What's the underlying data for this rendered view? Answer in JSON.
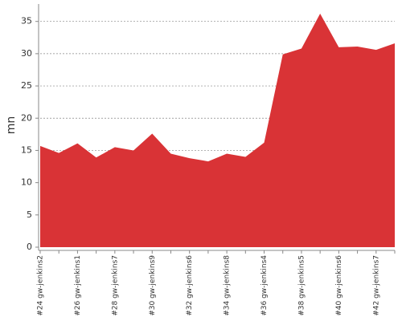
{
  "chart_data": {
    "type": "area",
    "y_label": "mn",
    "categories": [
      "#24 gw-jenkins2",
      null,
      "#26 gw-jenkins1",
      null,
      "#28 gw-jenkins7",
      null,
      "#30 gw-jenkins9",
      null,
      "#32 gw-jenkins6",
      null,
      "#34 gw-jenkins8",
      null,
      "#36 gw-jenkins4",
      null,
      "#38 gw-jenkins5",
      null,
      "#40 gw-jenkins6",
      null,
      "#42 gw-jenkins7",
      null
    ],
    "values": [
      15.7,
      14.6,
      16.1,
      13.9,
      15.5,
      15.0,
      17.6,
      14.5,
      13.8,
      13.3,
      14.5,
      14.0,
      16.2,
      29.9,
      30.8,
      36.2,
      31.0,
      31.1,
      30.6,
      31.6
    ],
    "color": "#d93336",
    "ylim": [
      0,
      37.7
    ],
    "yticks": [
      0,
      5,
      10,
      15,
      20,
      25,
      30,
      35
    ],
    "grid": true
  }
}
